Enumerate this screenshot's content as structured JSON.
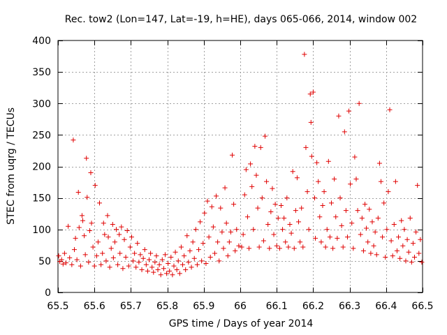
{
  "chart_data": {
    "type": "scatter",
    "title": "Rec. tow2 (Lon=147, Lat=-19, h=HE), days 065-066, 2014, window 002",
    "xlabel": "GPS time / Days of year 2014",
    "ylabel": "STEC from uqrg / TECUs",
    "xlim": [
      65.5,
      66.5
    ],
    "ylim": [
      0,
      400
    ],
    "xticks": [
      65.5,
      65.6,
      65.7,
      65.8,
      65.9,
      66.0,
      66.1,
      66.2,
      66.3,
      66.4,
      66.5
    ],
    "xtick_labels": [
      "65.5",
      "65.6",
      "65.7",
      "65.8",
      "65.9",
      "66",
      "66.1",
      "66.2",
      "66.3",
      "66.4",
      "66.5"
    ],
    "yticks": [
      0,
      50,
      100,
      150,
      200,
      250,
      300,
      350,
      400
    ],
    "ytick_labels": [
      "0",
      "50",
      "100",
      "150",
      "200",
      "250",
      "300",
      "350",
      "400"
    ],
    "grid": true,
    "marker": "+",
    "series": [
      {
        "name": "STEC",
        "color": "#e00000",
        "points": [
          [
            65.502,
            58
          ],
          [
            65.505,
            49
          ],
          [
            65.51,
            52
          ],
          [
            65.514,
            45
          ],
          [
            65.518,
            62
          ],
          [
            65.522,
            47
          ],
          [
            65.528,
            105
          ],
          [
            65.532,
            55
          ],
          [
            65.538,
            44
          ],
          [
            65.542,
            242
          ],
          [
            65.545,
            68
          ],
          [
            65.548,
            86
          ],
          [
            65.552,
            52
          ],
          [
            65.556,
            159
          ],
          [
            65.558,
            103
          ],
          [
            65.562,
            42
          ],
          [
            65.566,
            122
          ],
          [
            65.568,
            114
          ],
          [
            65.572,
            90
          ],
          [
            65.575,
            60
          ],
          [
            65.578,
            213
          ],
          [
            65.58,
            151
          ],
          [
            65.584,
            48
          ],
          [
            65.587,
            98
          ],
          [
            65.59,
            190
          ],
          [
            65.592,
            110
          ],
          [
            65.596,
            72
          ],
          [
            65.6,
            42
          ],
          [
            65.602,
            170
          ],
          [
            65.606,
            58
          ],
          [
            65.61,
            80
          ],
          [
            65.614,
            142
          ],
          [
            65.618,
            44
          ],
          [
            65.622,
            62
          ],
          [
            65.625,
            110
          ],
          [
            65.628,
            92
          ],
          [
            65.632,
            50
          ],
          [
            65.636,
            122
          ],
          [
            65.638,
            88
          ],
          [
            65.642,
            40
          ],
          [
            65.646,
            70
          ],
          [
            65.65,
            108
          ],
          [
            65.652,
            55
          ],
          [
            65.656,
            80
          ],
          [
            65.66,
            100
          ],
          [
            65.664,
            44
          ],
          [
            65.668,
            92
          ],
          [
            65.67,
            62
          ],
          [
            65.674,
            104
          ],
          [
            65.678,
            38
          ],
          [
            65.682,
            84
          ],
          [
            65.686,
            56
          ],
          [
            65.69,
            98
          ],
          [
            65.694,
            42
          ],
          [
            65.698,
            72
          ],
          [
            65.702,
            88
          ],
          [
            65.706,
            50
          ],
          [
            65.71,
            62
          ],
          [
            65.714,
            40
          ],
          [
            65.718,
            78
          ],
          [
            65.722,
            48
          ],
          [
            65.726,
            60
          ],
          [
            65.73,
            36
          ],
          [
            65.734,
            54
          ],
          [
            65.738,
            68
          ],
          [
            65.742,
            44
          ],
          [
            65.746,
            34
          ],
          [
            65.75,
            52
          ],
          [
            65.754,
            62
          ],
          [
            65.758,
            40
          ],
          [
            65.762,
            32
          ],
          [
            65.766,
            48
          ],
          [
            65.77,
            58
          ],
          [
            65.774,
            36
          ],
          [
            65.778,
            44
          ],
          [
            65.782,
            28
          ],
          [
            65.786,
            52
          ],
          [
            65.79,
            38
          ],
          [
            65.794,
            60
          ],
          [
            65.798,
            30
          ],
          [
            65.802,
            46
          ],
          [
            65.806,
            34
          ],
          [
            65.81,
            56
          ],
          [
            65.814,
            28
          ],
          [
            65.818,
            42
          ],
          [
            65.822,
            64
          ],
          [
            65.826,
            36
          ],
          [
            65.83,
            50
          ],
          [
            65.834,
            30
          ],
          [
            65.838,
            72
          ],
          [
            65.842,
            44
          ],
          [
            65.846,
            58
          ],
          [
            65.85,
            36
          ],
          [
            65.854,
            90
          ],
          [
            65.858,
            48
          ],
          [
            65.862,
            66
          ],
          [
            65.866,
            40
          ],
          [
            65.87,
            80
          ],
          [
            65.874,
            54
          ],
          [
            65.878,
            100
          ],
          [
            65.882,
            44
          ],
          [
            65.886,
            68
          ],
          [
            65.89,
            112
          ],
          [
            65.894,
            50
          ],
          [
            65.898,
            78
          ],
          [
            65.902,
            126
          ],
          [
            65.906,
            46
          ],
          [
            65.91,
            145
          ],
          [
            65.914,
            88
          ],
          [
            65.918,
            56
          ],
          [
            65.922,
            136
          ],
          [
            65.926,
            104
          ],
          [
            65.93,
            62
          ],
          [
            65.934,
            153
          ],
          [
            65.938,
            80
          ],
          [
            65.942,
            50
          ],
          [
            65.946,
            134
          ],
          [
            65.95,
            96
          ],
          [
            65.954,
            70
          ],
          [
            65.958,
            166
          ],
          [
            65.962,
            110
          ],
          [
            65.966,
            58
          ],
          [
            65.97,
            80
          ],
          [
            65.974,
            96
          ],
          [
            65.978,
            218
          ],
          [
            65.982,
            140
          ],
          [
            65.986,
            66
          ],
          [
            65.99,
            100
          ],
          [
            65.996,
            74
          ],
          [
            66.004,
            72
          ],
          [
            66.008,
            92
          ],
          [
            66.012,
            155
          ],
          [
            66.016,
            195
          ],
          [
            66.02,
            120
          ],
          [
            66.024,
            70
          ],
          [
            66.028,
            204
          ],
          [
            66.032,
            168
          ],
          [
            66.036,
            100
          ],
          [
            66.04,
            232
          ],
          [
            66.044,
            186
          ],
          [
            66.048,
            134
          ],
          [
            66.052,
            72
          ],
          [
            66.056,
            230
          ],
          [
            66.06,
            150
          ],
          [
            66.064,
            82
          ],
          [
            66.068,
            248
          ],
          [
            66.072,
            176
          ],
          [
            66.076,
            108
          ],
          [
            66.08,
            70
          ],
          [
            66.084,
            128
          ],
          [
            66.088,
            165
          ],
          [
            66.092,
            92
          ],
          [
            66.096,
            140
          ],
          [
            66.1,
            74
          ],
          [
            66.104,
            118
          ],
          [
            66.108,
            70
          ],
          [
            66.112,
            138
          ],
          [
            66.116,
            100
          ],
          [
            66.12,
            118
          ],
          [
            66.124,
            80
          ],
          [
            66.128,
            150
          ],
          [
            66.132,
            72
          ],
          [
            66.136,
            108
          ],
          [
            66.14,
            94
          ],
          [
            66.144,
            192
          ],
          [
            66.148,
            70
          ],
          [
            66.152,
            130
          ],
          [
            66.156,
            182
          ],
          [
            66.16,
            112
          ],
          [
            66.164,
            80
          ],
          [
            66.168,
            134
          ],
          [
            66.172,
            72
          ],
          [
            66.176,
            378
          ],
          [
            66.18,
            230
          ],
          [
            66.184,
            160
          ],
          [
            66.188,
            100
          ],
          [
            66.192,
            315
          ],
          [
            66.194,
            270
          ],
          [
            66.196,
            216
          ],
          [
            66.2,
            318
          ],
          [
            66.204,
            150
          ],
          [
            66.206,
            86
          ],
          [
            66.21,
            206
          ],
          [
            66.214,
            176
          ],
          [
            66.218,
            120
          ],
          [
            66.222,
            80
          ],
          [
            66.226,
            138
          ],
          [
            66.23,
            160
          ],
          [
            66.234,
            72
          ],
          [
            66.238,
            100
          ],
          [
            66.242,
            208
          ],
          [
            66.246,
            88
          ],
          [
            66.25,
            142
          ],
          [
            66.254,
            70
          ],
          [
            66.258,
            180
          ],
          [
            66.262,
            120
          ],
          [
            66.266,
            86
          ],
          [
            66.27,
            280
          ],
          [
            66.274,
            150
          ],
          [
            66.278,
            106
          ],
          [
            66.282,
            72
          ],
          [
            66.286,
            255
          ],
          [
            66.29,
            130
          ],
          [
            66.294,
            88
          ],
          [
            66.298,
            288
          ],
          [
            66.302,
            172
          ],
          [
            66.306,
            110
          ],
          [
            66.31,
            70
          ],
          [
            66.314,
            215
          ],
          [
            66.318,
            180
          ],
          [
            66.322,
            130
          ],
          [
            66.326,
            300
          ],
          [
            66.33,
            92
          ],
          [
            66.334,
            118
          ],
          [
            66.338,
            66
          ],
          [
            66.342,
            140
          ],
          [
            66.346,
            102
          ],
          [
            66.35,
            80
          ],
          [
            66.354,
            132
          ],
          [
            66.358,
            62
          ],
          [
            66.362,
            112
          ],
          [
            66.366,
            74
          ],
          [
            66.37,
            96
          ],
          [
            66.374,
            60
          ],
          [
            66.378,
            118
          ],
          [
            66.382,
            205
          ],
          [
            66.386,
            176
          ],
          [
            66.39,
            88
          ],
          [
            66.394,
            142
          ],
          [
            66.398,
            56
          ],
          [
            66.402,
            100
          ],
          [
            66.406,
            160
          ],
          [
            66.41,
            290
          ],
          [
            66.414,
            82
          ],
          [
            66.418,
            58
          ],
          [
            66.422,
            108
          ],
          [
            66.426,
            176
          ],
          [
            66.43,
            66
          ],
          [
            66.434,
            88
          ],
          [
            66.438,
            54
          ],
          [
            66.442,
            114
          ],
          [
            66.446,
            74
          ],
          [
            66.45,
            100
          ],
          [
            66.454,
            50
          ],
          [
            66.458,
            84
          ],
          [
            66.462,
            64
          ],
          [
            66.466,
            118
          ],
          [
            66.47,
            48
          ],
          [
            66.474,
            78
          ],
          [
            66.478,
            56
          ],
          [
            66.482,
            96
          ],
          [
            66.486,
            170
          ],
          [
            66.49,
            62
          ],
          [
            66.494,
            84
          ],
          [
            66.498,
            48
          ]
        ]
      }
    ]
  }
}
